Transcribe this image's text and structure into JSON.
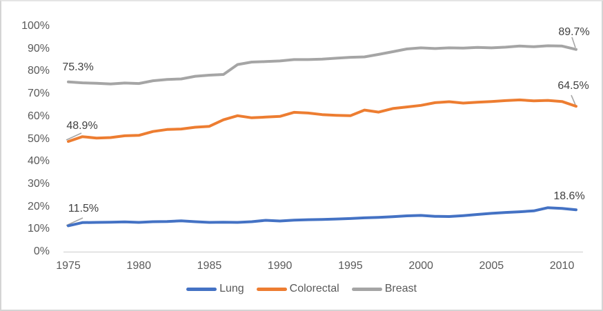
{
  "chart_data": {
    "type": "line",
    "title": "",
    "xlabel": "",
    "ylabel": "",
    "x": [
      1975,
      1976,
      1977,
      1978,
      1979,
      1980,
      1981,
      1982,
      1983,
      1984,
      1985,
      1986,
      1987,
      1988,
      1989,
      1990,
      1991,
      1992,
      1993,
      1994,
      1995,
      1996,
      1997,
      1998,
      1999,
      2000,
      2001,
      2002,
      2003,
      2004,
      2005,
      2006,
      2007,
      2008,
      2009,
      2010,
      2011
    ],
    "ylim": [
      0,
      100
    ],
    "grid": false,
    "legend_position": "bottom",
    "y_axis_tick_labels": [
      "100%",
      "90%",
      "80%",
      "70%",
      "60%",
      "50%",
      "40%",
      "30%",
      "20%",
      "10%",
      "0%"
    ],
    "x_axis_tick_labels": [
      "1975",
      "1980",
      "1985",
      "1990",
      "1995",
      "2000",
      "2005",
      "2010"
    ],
    "x_axis_tick_years": [
      1975,
      1980,
      1985,
      1990,
      1995,
      2000,
      2005,
      2010
    ],
    "series": [
      {
        "name": "Lung",
        "color": "#4472C4",
        "values": [
          11.5,
          12.9,
          13.0,
          13.1,
          13.2,
          13.0,
          13.3,
          13.4,
          13.7,
          13.3,
          13.0,
          13.1,
          13.0,
          13.3,
          13.9,
          13.6,
          14.0,
          14.2,
          14.3,
          14.5,
          14.7,
          15.0,
          15.2,
          15.5,
          15.9,
          16.1,
          15.7,
          15.6,
          16.0,
          16.5,
          17.0,
          17.4,
          17.7,
          18.1,
          19.5,
          19.2,
          18.6
        ]
      },
      {
        "name": "Colorectal",
        "color": "#ED7D31",
        "values": [
          48.9,
          51.0,
          50.4,
          50.6,
          51.4,
          51.6,
          53.3,
          54.2,
          54.4,
          55.2,
          55.6,
          58.5,
          60.3,
          59.4,
          59.7,
          60.0,
          61.8,
          61.5,
          60.8,
          60.5,
          60.3,
          62.8,
          61.9,
          63.5,
          64.2,
          64.9,
          66.1,
          66.5,
          65.9,
          66.3,
          66.6,
          67.0,
          67.3,
          66.9,
          67.1,
          66.6,
          64.5
        ]
      },
      {
        "name": "Breast",
        "color": "#A5A5A5",
        "values": [
          75.3,
          74.9,
          74.7,
          74.4,
          74.8,
          74.6,
          75.8,
          76.4,
          76.6,
          77.8,
          78.3,
          78.6,
          83.0,
          84.1,
          84.3,
          84.6,
          85.2,
          85.2,
          85.4,
          85.8,
          86.2,
          86.4,
          87.5,
          88.7,
          89.9,
          90.4,
          90.1,
          90.4,
          90.3,
          90.6,
          90.4,
          90.7,
          91.2,
          90.9,
          91.3,
          91.2,
          89.7
        ]
      }
    ],
    "data_labels": [
      {
        "series": "Breast",
        "point": "first",
        "text": "75.3%",
        "leader": false
      },
      {
        "series": "Colorectal",
        "point": "first",
        "text": "48.9%",
        "leader": true
      },
      {
        "series": "Lung",
        "point": "first",
        "text": "11.5%",
        "leader": true
      },
      {
        "series": "Breast",
        "point": "last",
        "text": "89.7%",
        "leader": true
      },
      {
        "series": "Colorectal",
        "point": "last",
        "text": "64.5%",
        "leader": true
      },
      {
        "series": "Lung",
        "point": "last",
        "text": "18.6%",
        "leader": false
      }
    ]
  },
  "colors": {
    "axis_line": "#D9D9D9",
    "tick_text": "#595959",
    "data_label_text": "#404040",
    "leader_line": "#A6A6A6",
    "background": "#FFFFFF"
  }
}
